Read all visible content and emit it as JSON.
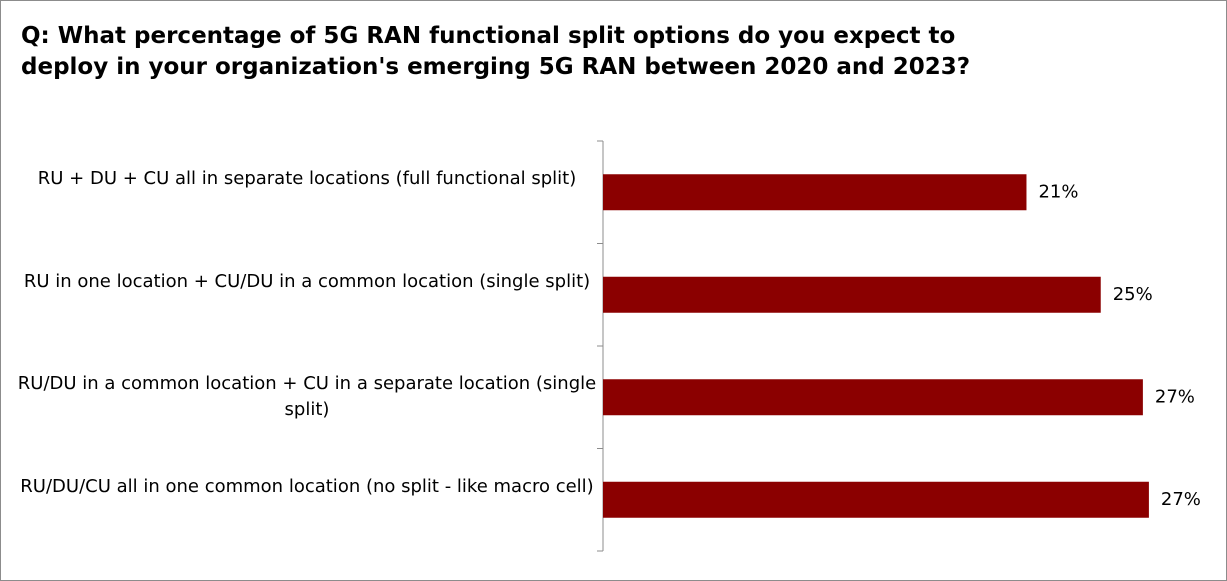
{
  "chart_data": {
    "type": "bar",
    "orientation": "horizontal",
    "title": "Q: What percentage of 5G RAN functional split options do you expect to deploy in your organization's emerging 5G RAN between 2020 and 2023?",
    "categories": [
      "RU + DU + CU all in separate locations (full functional split)",
      "RU in one location + CU/DU in a common location (single split)",
      "RU/DU in a common location + CU in a separate location (single split)",
      "RU/DU/CU all in one common location (no split - like macro cell)"
    ],
    "values": [
      21.1,
      24.8,
      26.9,
      27.2
    ],
    "value_labels": [
      "21%",
      "25%",
      "27%",
      "27%"
    ],
    "color": "#8b0000"
  }
}
